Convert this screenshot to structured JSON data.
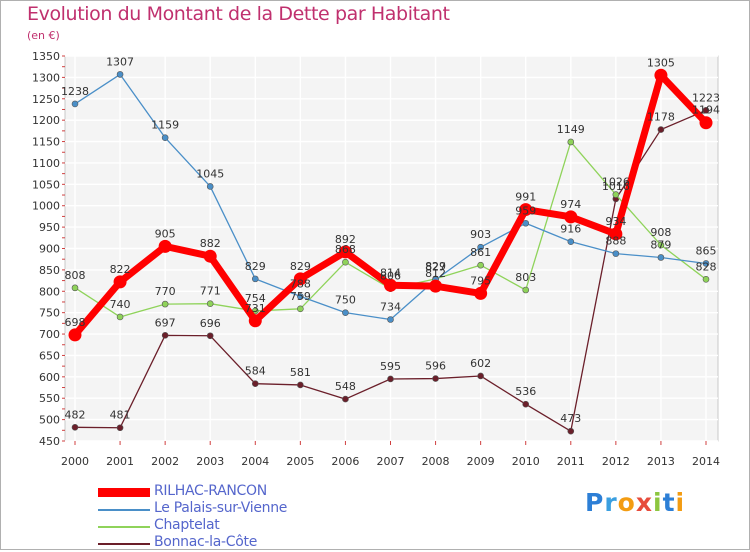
{
  "chart_data": {
    "type": "line",
    "title": "Evolution du Montant de la Dette par Habitant",
    "subtitle": "(en €)",
    "x": [
      2000,
      2001,
      2002,
      2003,
      2004,
      2005,
      2006,
      2007,
      2008,
      2009,
      2010,
      2011,
      2012,
      2013,
      2014
    ],
    "x_tick_labels": [
      "2000",
      "2001",
      "2002",
      "2003",
      "2004",
      "2005",
      "2006",
      "2007",
      "2008",
      "2009",
      "2010",
      "2011",
      "2012",
      "2013",
      "2014"
    ],
    "ylim": [
      450,
      1350
    ],
    "y_ticks": [
      450,
      500,
      550,
      600,
      650,
      700,
      750,
      800,
      850,
      900,
      950,
      1000,
      1050,
      1100,
      1150,
      1200,
      1250,
      1300,
      1350
    ],
    "grid": true,
    "legend_position": "bottom-left",
    "series": [
      {
        "name": "RILHAC-RANCON",
        "color": "#ff0000",
        "values": [
          698,
          822,
          905,
          882,
          731,
          829,
          892,
          814,
          812,
          795,
          991,
          974,
          934,
          1305,
          1194
        ],
        "labels": [
          "698",
          "822",
          "905",
          "882",
          "731",
          "829",
          "892",
          "814",
          "812",
          "795",
          "991",
          "974",
          "934",
          "1305",
          "1194"
        ]
      },
      {
        "name": "Le Palais-sur-Vienne",
        "color": "#4a8fc8",
        "values": [
          1238,
          1307,
          1159,
          1045,
          829,
          788,
          750,
          734,
          827,
          903,
          959,
          916,
          888,
          879,
          865
        ],
        "labels": [
          "1238",
          "1307",
          "1159",
          "1045",
          "829",
          "788",
          "750",
          "734",
          "827",
          "903",
          "959",
          "916",
          "888",
          "879",
          "865"
        ]
      },
      {
        "name": "Chaptelat",
        "color": "#8fd35a",
        "values": [
          808,
          740,
          770,
          771,
          754,
          759,
          868,
          806,
          829,
          861,
          803,
          1149,
          1026,
          908,
          828
        ],
        "labels": [
          "808",
          "740",
          "770",
          "771",
          "754",
          "759",
          "868",
          "806",
          "829",
          "861",
          "803",
          "1149",
          "1026",
          "908",
          "828"
        ]
      },
      {
        "name": "Bonnac-la-Côte",
        "color": "#6b1f2a",
        "values": [
          482,
          481,
          697,
          696,
          584,
          581,
          548,
          595,
          596,
          602,
          536,
          473,
          1016,
          1178,
          1223
        ],
        "labels": [
          "482",
          "481",
          "697",
          "696",
          "584",
          "581",
          "548",
          "595",
          "596",
          "602",
          "536",
          "473",
          "1016",
          "1178",
          "1223"
        ]
      }
    ]
  },
  "logo_text": [
    "P",
    "r",
    "o",
    "x",
    "i",
    "t",
    "i"
  ]
}
